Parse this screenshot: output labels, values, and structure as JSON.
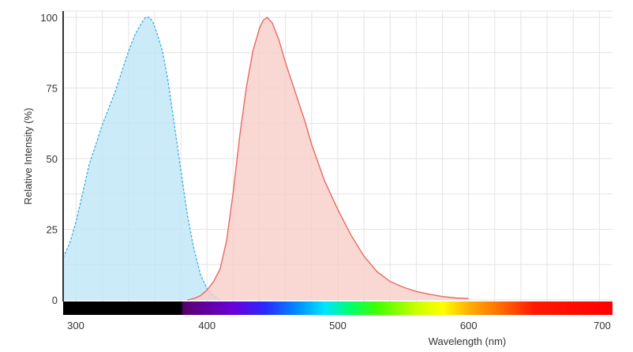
{
  "chart_data": {
    "type": "area",
    "title": "",
    "xlabel": "Wavelength (nm)",
    "ylabel": "Relative Intensity (%)",
    "xlim": [
      290,
      710
    ],
    "ylim": [
      0,
      100
    ],
    "xticks": [
      300,
      400,
      500,
      600,
      700
    ],
    "yticks": [
      0,
      25,
      50,
      75,
      100
    ],
    "xtick_labels": [
      "300",
      "400",
      "500",
      "600",
      "700"
    ],
    "ytick_labels": [
      "0",
      "25",
      "50",
      "75",
      "100"
    ],
    "grid": true,
    "legend": "none",
    "spectrum_bar": {
      "from": 290,
      "to": 710,
      "visible_from": 380
    },
    "series": [
      {
        "style": "dashed",
        "line_color": "#3db3e6",
        "fill_color": "#bfe6f6",
        "x": [
          290,
          295,
          300,
          305,
          310,
          315,
          320,
          325,
          330,
          335,
          340,
          345,
          350,
          353,
          356,
          359,
          362,
          366,
          370,
          375,
          380,
          385,
          390,
          395,
          400,
          405,
          410
        ],
        "y": [
          15,
          20,
          28,
          38,
          48,
          55,
          62,
          68,
          74,
          81,
          88,
          94,
          98,
          100,
          100,
          98,
          94,
          88,
          78,
          62,
          46,
          30,
          18,
          9,
          4,
          1.5,
          0
        ]
      },
      {
        "style": "solid",
        "line_color": "#e86a62",
        "fill_color": "#f8cdc7",
        "x": [
          385,
          390,
          395,
          400,
          405,
          410,
          415,
          420,
          425,
          430,
          435,
          440,
          443,
          446,
          450,
          455,
          460,
          465,
          470,
          475,
          480,
          490,
          500,
          510,
          520,
          530,
          540,
          550,
          560,
          570,
          580,
          590,
          600
        ],
        "y": [
          0,
          0.5,
          1.5,
          3.5,
          6.5,
          11,
          21,
          38,
          58,
          75,
          88,
          96,
          99,
          100,
          98,
          92,
          84,
          77,
          70,
          63,
          55,
          42,
          32,
          23,
          15.5,
          10,
          6.5,
          4.5,
          3,
          2,
          1.2,
          0.7,
          0.5
        ]
      }
    ]
  }
}
